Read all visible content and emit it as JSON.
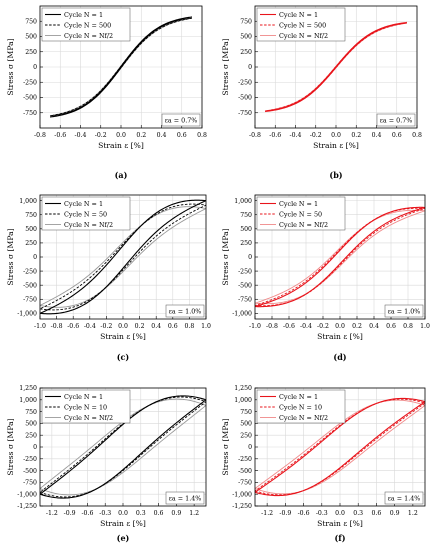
{
  "chart_data": [
    {
      "type": "line",
      "panel_label": "(a)",
      "color_scheme": "black",
      "xlabel": "Strain ε [%]",
      "ylabel": "Stress σ [MPa]",
      "xlim": [
        -0.8,
        0.8
      ],
      "ylim": [
        -1000,
        1000
      ],
      "xticks": [
        -0.8,
        -0.6,
        -0.4,
        -0.2,
        0.0,
        0.2,
        0.4,
        0.6,
        0.8
      ],
      "xtick_labels": [
        "-0.8",
        "-0.6",
        "-0.4",
        "-0.2",
        "0.0",
        "0.2",
        "0.4",
        "0.6",
        "0.8"
      ],
      "yticks": [
        -750,
        -500,
        -250,
        0,
        250,
        500,
        750
      ],
      "ytick_labels": [
        "-750",
        "-500",
        "-250",
        "0",
        "250",
        "500",
        "750"
      ],
      "annotation": "εa = 0.7%",
      "legend_position": "top-left",
      "series": [
        {
          "name": "Cycle N = 1",
          "style": "solid",
          "amplitude": 0.7,
          "peak_stress": 820,
          "width": 8,
          "shape": 1.8
        },
        {
          "name": "Cycle N = 500",
          "style": "dashed",
          "amplitude": 0.7,
          "peak_stress": 800,
          "width": 14,
          "shape": 1.8
        },
        {
          "name": "Cycle N = Nf/2",
          "style": "gray",
          "amplitude": 0.7,
          "peak_stress": 800,
          "width": 18,
          "shape": 1.8
        }
      ]
    },
    {
      "type": "line",
      "panel_label": "(b)",
      "color_scheme": "red",
      "xlabel": "Strain ε [%]",
      "ylabel": "Stress σ [MPa]",
      "xlim": [
        -0.8,
        0.8
      ],
      "ylim": [
        -1000,
        1000
      ],
      "xticks": [
        -0.8,
        -0.6,
        -0.4,
        -0.2,
        0.0,
        0.2,
        0.4,
        0.6,
        0.8
      ],
      "xtick_labels": [
        "-0.8",
        "-0.6",
        "-0.4",
        "-0.2",
        "0.0",
        "0.2",
        "0.4",
        "0.6",
        "0.8"
      ],
      "yticks": [
        -750,
        -500,
        -250,
        0,
        250,
        500,
        750
      ],
      "ytick_labels": [
        "-750",
        "-500",
        "-250",
        "0",
        "250",
        "500",
        "750"
      ],
      "annotation": "εa = 0.7%",
      "legend_position": "top-left",
      "series": [
        {
          "name": "Cycle N = 1",
          "style": "solid",
          "amplitude": 0.7,
          "peak_stress": 730,
          "width": 6,
          "shape": 1.8
        },
        {
          "name": "Cycle N = 500",
          "style": "dashed",
          "amplitude": 0.7,
          "peak_stress": 720,
          "width": 10,
          "shape": 1.8
        },
        {
          "name": "Cycle N = Nf/2",
          "style": "gray",
          "amplitude": 0.7,
          "peak_stress": 720,
          "width": 12,
          "shape": 1.8
        }
      ]
    },
    {
      "type": "line",
      "panel_label": "(c)",
      "color_scheme": "black",
      "xlabel": "Strain ε [%]",
      "ylabel": "Stress σ [MPa]",
      "xlim": [
        -1.0,
        1.0
      ],
      "ylim": [
        -1100,
        1100
      ],
      "xticks": [
        -1.0,
        -0.8,
        -0.6,
        -0.4,
        -0.2,
        0.0,
        0.2,
        0.4,
        0.6,
        0.8,
        1.0
      ],
      "xtick_labels": [
        "-1.0",
        "-0.8",
        "-0.6",
        "-0.4",
        "-0.2",
        "0.0",
        "0.2",
        "0.4",
        "0.6",
        "0.8",
        "1.0"
      ],
      "yticks": [
        -1000,
        -750,
        -500,
        -250,
        0,
        250,
        500,
        750,
        1000
      ],
      "ytick_labels": [
        "-1,000",
        "-750",
        "-500",
        "-250",
        "0",
        "250",
        "500",
        "750",
        "1,000"
      ],
      "annotation": "εa = 1.0%",
      "legend_position": "top-left",
      "series": [
        {
          "name": "Cycle N = 1",
          "style": "solid",
          "amplitude": 1.0,
          "peak_stress": 1000,
          "width": 200,
          "shape": 1.6
        },
        {
          "name": "Cycle N = 50",
          "style": "dashed",
          "amplitude": 1.0,
          "peak_stress": 920,
          "width": 230,
          "shape": 1.6
        },
        {
          "name": "Cycle N = Nf/2",
          "style": "gray",
          "amplitude": 1.0,
          "peak_stress": 860,
          "width": 260,
          "shape": 1.6
        }
      ]
    },
    {
      "type": "line",
      "panel_label": "(d)",
      "color_scheme": "red",
      "xlabel": "Strain ε [%]",
      "ylabel": "Stress σ [MPa]",
      "xlim": [
        -1.0,
        1.0
      ],
      "ylim": [
        -1100,
        1100
      ],
      "xticks": [
        -1.0,
        -0.8,
        -0.6,
        -0.4,
        -0.2,
        0.0,
        0.2,
        0.4,
        0.6,
        0.8,
        1.0
      ],
      "xtick_labels": [
        "-1.0",
        "-0.8",
        "-0.6",
        "-0.4",
        "-0.2",
        "0.0",
        "0.2",
        "0.4",
        "0.6",
        "0.8",
        "1.0"
      ],
      "yticks": [
        -1000,
        -750,
        -500,
        -250,
        0,
        250,
        500,
        750,
        1000
      ],
      "ytick_labels": [
        "-1,000",
        "-750",
        "-500",
        "-250",
        "0",
        "250",
        "500",
        "750",
        "1,000"
      ],
      "annotation": "εa = 1.0%",
      "legend_position": "top-left",
      "series": [
        {
          "name": "Cycle N = 1",
          "style": "solid",
          "amplitude": 1.0,
          "peak_stress": 880,
          "width": 120,
          "shape": 1.7
        },
        {
          "name": "Cycle N = 50",
          "style": "dashed",
          "amplitude": 1.0,
          "peak_stress": 860,
          "width": 140,
          "shape": 1.7
        },
        {
          "name": "Cycle N = Nf/2",
          "style": "gray",
          "amplitude": 1.0,
          "peak_stress": 820,
          "width": 160,
          "shape": 1.7
        }
      ]
    },
    {
      "type": "line",
      "panel_label": "(e)",
      "color_scheme": "black",
      "xlabel": "Strain ε [%]",
      "ylabel": "Stress σ [MPa]",
      "xlim": [
        -1.4,
        1.4
      ],
      "ylim": [
        -1250,
        1250
      ],
      "xticks": [
        -1.2,
        -0.9,
        -0.6,
        -0.3,
        0.0,
        0.3,
        0.6,
        0.9,
        1.2
      ],
      "xtick_labels": [
        "-1.2",
        "-0.9",
        "-0.6",
        "-0.3",
        "0.0",
        "0.3",
        "0.6",
        "0.9",
        "1.2"
      ],
      "yticks": [
        -1250,
        -1000,
        -750,
        -500,
        -250,
        0,
        250,
        500,
        750,
        1000,
        1250
      ],
      "ytick_labels": [
        "-1,250",
        "-1,000",
        "-750",
        "-500",
        "-250",
        "0",
        "250",
        "500",
        "750",
        "1,000",
        "1,250"
      ],
      "annotation": "εa = 1.4%",
      "legend_position": "top-left",
      "series": [
        {
          "name": "Cycle N = 1",
          "style": "solid",
          "amplitude": 1.4,
          "peak_stress": 1000,
          "width": 480,
          "shape": 1.3
        },
        {
          "name": "Cycle N = 10",
          "style": "dashed",
          "amplitude": 1.4,
          "peak_stress": 960,
          "width": 500,
          "shape": 1.3
        },
        {
          "name": "Cycle N = Nf/2",
          "style": "gray",
          "amplitude": 1.4,
          "peak_stress": 880,
          "width": 540,
          "shape": 1.3
        }
      ]
    },
    {
      "type": "line",
      "panel_label": "(f)",
      "color_scheme": "red",
      "xlabel": "Strain ε [%]",
      "ylabel": "Stress σ [MPa]",
      "xlim": [
        -1.4,
        1.4
      ],
      "ylim": [
        -1250,
        1250
      ],
      "xticks": [
        -1.2,
        -0.9,
        -0.6,
        -0.3,
        0.0,
        0.3,
        0.6,
        0.9,
        1.2
      ],
      "xtick_labels": [
        "-1.2",
        "-0.9",
        "-0.6",
        "-0.3",
        "0.0",
        "0.3",
        "0.6",
        "0.9",
        "1.2"
      ],
      "yticks": [
        -1250,
        -1000,
        -750,
        -500,
        -250,
        0,
        250,
        500,
        750,
        1000,
        1250
      ],
      "ytick_labels": [
        "-1,250",
        "-1,000",
        "-750",
        "-500",
        "-250",
        "0",
        "250",
        "500",
        "750",
        "1,000",
        "1,250"
      ],
      "annotation": "εa = 1.4%",
      "legend_position": "top-left",
      "series": [
        {
          "name": "Cycle N = 1",
          "style": "solid",
          "amplitude": 1.4,
          "peak_stress": 960,
          "width": 440,
          "shape": 1.3
        },
        {
          "name": "Cycle N = 10",
          "style": "dashed",
          "amplitude": 1.4,
          "peak_stress": 930,
          "width": 460,
          "shape": 1.3
        },
        {
          "name": "Cycle N = Nf/2",
          "style": "gray",
          "amplitude": 1.4,
          "peak_stress": 880,
          "width": 500,
          "shape": 1.3
        }
      ]
    }
  ],
  "colors": {
    "black_scheme": {
      "solid": "#000000",
      "dashed": "#000000",
      "gray": "#9a9a9a"
    },
    "red_scheme": {
      "solid": "#e8141b",
      "dashed": "#e8141b",
      "gray": "#f08a8a"
    },
    "axis": "#000000",
    "grid": "#d9d9d9"
  }
}
